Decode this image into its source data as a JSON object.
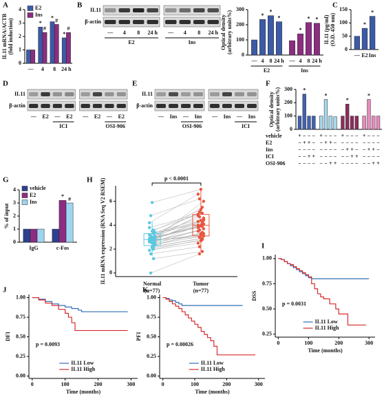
{
  "chart_data": [
    {
      "type": "bar",
      "label": "A",
      "ylabel": [
        "IL11 mRNA/ACTB",
        "(fold induction)"
      ],
      "ylim": [
        0,
        4
      ],
      "yticks": [
        0,
        1,
        2,
        3,
        4
      ],
      "categories": [
        "—",
        "4",
        "8",
        "24 h"
      ],
      "series": [
        {
          "name": "E2",
          "color": "#3c5aa6",
          "values": [
            1,
            2.7,
            3.1,
            1.9
          ],
          "sig": [
            null,
            "*",
            "*",
            "*"
          ]
        },
        {
          "name": "Ins",
          "color": "#8c2d82",
          "values": [
            1,
            2.3,
            2.9,
            2.3
          ],
          "sig": [
            null,
            "#",
            "#",
            "#"
          ]
        }
      ]
    },
    {
      "type": "blot",
      "label": "B",
      "rows": [
        "IL11",
        "β-actin"
      ],
      "panels": [
        {
          "lanes": [
            "—",
            "4",
            "8",
            "24 h"
          ],
          "group": "E2",
          "bands": [
            [
              0.35,
              0.8,
              0.9,
              0.75
            ],
            [
              0.85,
              0.85,
              0.85,
              0.85
            ]
          ]
        },
        {
          "lanes": [
            "—",
            "4",
            "8",
            "24 h"
          ],
          "group": "Ins",
          "bands": [
            [
              0.35,
              0.55,
              0.75,
              0.7
            ],
            [
              0.85,
              0.85,
              0.85,
              0.85
            ]
          ]
        }
      ]
    },
    {
      "type": "bar",
      "ylabel": [
        "Optical density",
        "(arbitrary units%)"
      ],
      "ylim": [
        0,
        300
      ],
      "yticks": [
        0,
        100,
        200,
        300
      ],
      "groups": [
        {
          "label": "E2",
          "categories": [
            "—",
            "4",
            "8",
            "24 h"
          ],
          "color": "#3c5aa6",
          "values": [
            100,
            235,
            260,
            220
          ],
          "sig": [
            null,
            "*",
            "*",
            "*"
          ]
        },
        {
          "label": "Ins",
          "categories": [
            "—",
            "4",
            "8",
            "24 h"
          ],
          "color": "#8c2d82",
          "values": [
            95,
            140,
            215,
            210
          ],
          "sig": [
            null,
            "*",
            "*",
            "*"
          ]
        }
      ]
    },
    {
      "type": "bar",
      "label": "C",
      "ylabel": [
        "IL11 (pg/ml)",
        "(O.D. 450 nm)"
      ],
      "ylim": [
        0,
        150
      ],
      "yticks": [
        0,
        50,
        100,
        150
      ],
      "groups": [
        {
          "categories": [
            "—",
            "E2",
            "Ins"
          ],
          "color": "#3c5aa6",
          "values": [
            50,
            80,
            125
          ],
          "sig": [
            null,
            "*",
            "*"
          ]
        }
      ]
    },
    {
      "type": "blot",
      "label": "D",
      "rows": [
        "IL11",
        "β-actin"
      ],
      "panels": [
        {
          "lanes": [
            "—",
            "E2",
            "—",
            "E2"
          ],
          "treatment": "ICI",
          "bands": [
            [
              0.3,
              0.8,
              0.35,
              0.4
            ],
            [
              0.85,
              0.85,
              0.85,
              0.85
            ]
          ]
        },
        {
          "lanes": [
            "—",
            "E2",
            "—",
            "E2"
          ],
          "treatment": "OSI-906",
          "bands": [
            [
              0.3,
              0.75,
              0.35,
              0.35
            ],
            [
              0.85,
              0.85,
              0.85,
              0.85
            ]
          ]
        }
      ]
    },
    {
      "type": "blot",
      "label": "E",
      "rows": [
        "IL11",
        "β-actin"
      ],
      "panels": [
        {
          "lanes": [
            "—",
            "Ins",
            "—",
            "Ins"
          ],
          "treatment": "OSI-906",
          "bands": [
            [
              0.3,
              0.7,
              0.3,
              0.35
            ],
            [
              0.85,
              0.85,
              0.85,
              0.85
            ]
          ]
        },
        {
          "lanes": [
            "—",
            "Ins",
            "—",
            "Ins"
          ],
          "treatment": "ICI",
          "bands": [
            [
              0.3,
              0.75,
              0.35,
              0.35
            ],
            [
              0.85,
              0.85,
              0.85,
              0.85
            ]
          ]
        }
      ]
    },
    {
      "type": "bar",
      "label": "F",
      "ylabel": [
        "Optical density",
        "(arbitrary units%)"
      ],
      "ylim": [
        0,
        300
      ],
      "yticks": [
        0,
        100,
        200,
        300
      ],
      "groups": [
        {
          "color": "#4161b0",
          "values": [
            100,
            265,
            100,
            100
          ],
          "sig": [
            null,
            "*",
            null,
            null
          ]
        },
        {
          "color": "#a8d8f0",
          "values": [
            100,
            225,
            100,
            95
          ],
          "sig": [
            null,
            "*",
            null,
            null
          ]
        },
        {
          "color": "#8c2d5c",
          "values": [
            100,
            190,
            100,
            100
          ],
          "sig": [
            null,
            "*",
            null,
            null
          ]
        },
        {
          "color": "#e88bbd",
          "values": [
            100,
            225,
            100,
            100
          ],
          "sig": [
            null,
            "*",
            null,
            null
          ]
        }
      ],
      "table": [
        {
          "name": "vehicle",
          "cells": [
            "+",
            "−",
            "−",
            "−",
            "+",
            "−",
            "−",
            "−",
            "+",
            "−",
            "−",
            "−",
            "+",
            "−",
            "−",
            "−"
          ]
        },
        {
          "name": "E2",
          "cells": [
            "−",
            "+",
            "+",
            "−",
            "−",
            "+",
            "+",
            "−",
            "−",
            "−",
            "−",
            "−",
            "−",
            "−",
            "−",
            "−"
          ]
        },
        {
          "name": "Ins",
          "cells": [
            "−",
            "−",
            "−",
            "−",
            "−",
            "−",
            "−",
            "−",
            "−",
            "+",
            "+",
            "−",
            "−",
            "+",
            "+",
            "−"
          ]
        },
        {
          "name": "ICI",
          "cells": [
            "−",
            "−",
            "+",
            "+",
            "−",
            "−",
            "−",
            "−",
            "−",
            "−",
            "+",
            "+",
            "−",
            "−",
            "−",
            "−"
          ]
        },
        {
          "name": "OSI-906",
          "cells": [
            "−",
            "−",
            "−",
            "−",
            "−",
            "−",
            "+",
            "+",
            "−",
            "−",
            "−",
            "−",
            "−",
            "−",
            "+",
            "+"
          ]
        }
      ]
    },
    {
      "type": "bar",
      "label": "G",
      "ylabel": "% of input",
      "ylim": [
        0,
        4
      ],
      "yticks": [
        0,
        1,
        2,
        3,
        4
      ],
      "categories": [
        "IgG",
        "c-Fos"
      ],
      "series": [
        {
          "name": "vehicle",
          "color": "#2e3f8f",
          "values": [
            1,
            1
          ],
          "sig": [
            null,
            null
          ]
        },
        {
          "name": "E2",
          "color": "#8c2d82",
          "values": [
            1,
            3.2
          ],
          "sig": [
            null,
            "*"
          ]
        },
        {
          "name": "Ins",
          "color": "#9fd4f0",
          "values": [
            1,
            3.0
          ],
          "sig": [
            null,
            "#"
          ]
        }
      ]
    },
    {
      "type": "paired_box",
      "label": "H",
      "annotation": "p < 0.0001",
      "ylabel": "IL11 mRNA expression (RNA Seq V2 RSEM)",
      "ylim": [
        -0.3,
        7.3
      ],
      "yticks": [
        0,
        2,
        4,
        6
      ],
      "categories": [
        "Normal",
        "Tumor"
      ],
      "sublabels": [
        "(n=77)",
        "(n=77)"
      ],
      "colors": [
        "#5bc8e0",
        "#e8553f"
      ],
      "values": [
        [
          2.8,
          3.1,
          2.5,
          2.2,
          3.4,
          2.9,
          1.6,
          2.7,
          3.0,
          2.4,
          3.8,
          2.6,
          2.1,
          3.3,
          2.9,
          1.9,
          2.8,
          3.5,
          2.3,
          2.6,
          4.2,
          3.0,
          2.7,
          1.2,
          2.5,
          3.2,
          2.8,
          5.9,
          2.0,
          3.1,
          2.6,
          0,
          2.9,
          3.6,
          2.4,
          2.7,
          4.8,
          2.2,
          3.0,
          2.8
        ],
        [
          4.0,
          5.1,
          3.3,
          2.9,
          4.6,
          3.8,
          2.2,
          4.4,
          5.5,
          3.1,
          4.9,
          3.6,
          2.7,
          4.2,
          6.0,
          2.5,
          3.9,
          5.3,
          3.4,
          4.1,
          6.6,
          4.7,
          3.2,
          1.8,
          3.7,
          4.3,
          3.0,
          7.0,
          2.8,
          4.5,
          3.5,
          1.6,
          4.0,
          5.0,
          3.3,
          4.8,
          6.2,
          2.9,
          3.9,
          4.4
        ]
      ],
      "boxes": [
        {
          "whisker_low": 1.4,
          "q1": 2.3,
          "median": 2.8,
          "q3": 3.3,
          "whisker_high": 4.3
        },
        {
          "whisker_low": 1.8,
          "q1": 3.1,
          "median": 4.0,
          "q3": 4.9,
          "whisker_high": 7.0
        }
      ]
    },
    {
      "type": "km",
      "label": "I",
      "ylabel": "DSS",
      "xlabel": "Time (months)",
      "annotation": "p = 0.0031",
      "legend": "lower center",
      "xlim": [
        -10,
        320
      ],
      "xticks": [
        0,
        100,
        200,
        300
      ],
      "ylim": [
        0.22,
        1.04
      ],
      "yticks": [
        0.25,
        {
          "value": 0.5,
          "label": "0.50"
        },
        0.75,
        {
          "value": 1,
          "label": "1.00"
        }
      ],
      "series": [
        {
          "name": "IL11 Low",
          "color": "#2f6db5",
          "x": [
            0,
            10,
            20,
            30,
            40,
            50,
            60,
            70,
            80,
            90,
            100,
            110,
            300
          ],
          "y": [
            1,
            0.99,
            0.97,
            0.95,
            0.93,
            0.91,
            0.89,
            0.87,
            0.85,
            0.83,
            0.81,
            0.8,
            0.8
          ]
        },
        {
          "name": "IL11 High",
          "color": "#d62a2a",
          "x": [
            0,
            10,
            20,
            30,
            40,
            50,
            60,
            70,
            80,
            90,
            100,
            110,
            120,
            130,
            140,
            150,
            170,
            190,
            200,
            230,
            290
          ],
          "y": [
            1,
            0.99,
            0.97,
            0.95,
            0.94,
            0.92,
            0.9,
            0.88,
            0.86,
            0.84,
            0.82,
            0.75,
            0.7,
            0.65,
            0.62,
            0.6,
            0.55,
            0.5,
            0.45,
            0.34,
            0.34
          ]
        }
      ]
    },
    {
      "type": "km",
      "label": "J",
      "ylabel": "DFI",
      "xlabel": "Time (months)",
      "annotation": "p = 0.0093",
      "legend": "lower center",
      "xlim": [
        -10,
        320
      ],
      "xticks": [
        0,
        100,
        200,
        300
      ],
      "ylim": [
        -0.03,
        1.04
      ],
      "yticks": [
        {
          "value": 0,
          "label": "0.00"
        },
        0.25,
        {
          "value": 0.5,
          "label": "0.50"
        },
        0.75,
        {
          "value": 1,
          "label": "1.00"
        }
      ],
      "series": [
        {
          "name": "IL11 Low",
          "color": "#2f6db5",
          "x": [
            0,
            20,
            40,
            60,
            80,
            100,
            120,
            140,
            150,
            290
          ],
          "y": [
            1,
            0.98,
            0.95,
            0.92,
            0.9,
            0.88,
            0.86,
            0.84,
            0.82,
            0.82
          ]
        },
        {
          "name": "IL11 High",
          "color": "#d62a2a",
          "x": [
            0,
            20,
            40,
            60,
            80,
            100,
            110,
            120,
            130,
            290
          ],
          "y": [
            1,
            0.97,
            0.93,
            0.9,
            0.85,
            0.8,
            0.75,
            0.68,
            0.58,
            0.58
          ]
        }
      ]
    },
    {
      "type": "km",
      "label": "K",
      "ylabel": "PFI",
      "xlabel": "Time (months)",
      "annotation": "p = 0.00026",
      "legend": "lower center",
      "xlim": [
        -10,
        320
      ],
      "xticks": [
        0,
        100,
        200,
        300
      ],
      "ylim": [
        -0.03,
        1.04
      ],
      "yticks": [
        {
          "value": 0,
          "label": "0.00"
        },
        0.25,
        {
          "value": 0.5,
          "label": "0.50"
        },
        0.75,
        {
          "value": 1,
          "label": "1.00"
        }
      ],
      "series": [
        {
          "name": "IL11 Low",
          "color": "#2f6db5",
          "x": [
            0,
            10,
            20,
            30,
            40,
            50,
            60,
            250
          ],
          "y": [
            1,
            0.99,
            0.97,
            0.96,
            0.94,
            0.92,
            0.9,
            0.9
          ]
        },
        {
          "name": "IL11 High",
          "color": "#d62a2a",
          "x": [
            0,
            10,
            20,
            30,
            40,
            50,
            60,
            70,
            80,
            90,
            100,
            110,
            120,
            130,
            140,
            150,
            160,
            170,
            290
          ],
          "y": [
            1,
            0.98,
            0.95,
            0.92,
            0.89,
            0.86,
            0.82,
            0.78,
            0.74,
            0.7,
            0.66,
            0.62,
            0.57,
            0.53,
            0.49,
            0.45,
            0.38,
            0.27,
            0.27
          ]
        }
      ]
    }
  ]
}
